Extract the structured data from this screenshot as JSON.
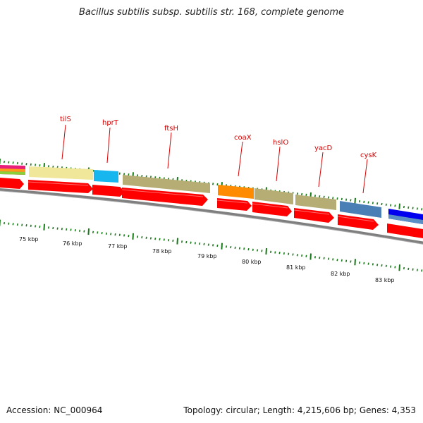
{
  "title": "Bacillus subtilis subsp. subtilis str. 168, complete genome",
  "footer": {
    "accession": "Accession: NC_000964",
    "summary": "Topology: circular; Length: 4,215,606 bp; Genes: 4,353"
  },
  "gene_labels": [
    "tilS",
    "hprT",
    "ftsH",
    "coaX",
    "hslO",
    "yacD",
    "cysK"
  ],
  "ruler_labels": [
    "75 kbp",
    "76 kbp",
    "77 kbp",
    "78 kbp",
    "79 kbp",
    "80 kbp",
    "81 kbp",
    "82 kbp",
    "83 kbp"
  ],
  "colors": {
    "backbone": "#808080",
    "cds_forward": "#ff0000",
    "tick": "#1a7a1a",
    "label": "#d40000"
  },
  "feature_blocks": [
    {
      "name": "stack-left",
      "color": "#e8207a"
    },
    {
      "name": "tilS",
      "color": "#f1e79a"
    },
    {
      "name": "hprT",
      "color": "#17b6ee"
    },
    {
      "name": "ftsH",
      "color": "#b5ad74"
    },
    {
      "name": "coaX",
      "color": "#ff8c00"
    },
    {
      "name": "hslO",
      "color": "#b5ad74"
    },
    {
      "name": "yacD",
      "color": "#b5ad74"
    },
    {
      "name": "cysK",
      "color": "#4a7fb5"
    },
    {
      "name": "next",
      "color": "#0000ee"
    }
  ]
}
